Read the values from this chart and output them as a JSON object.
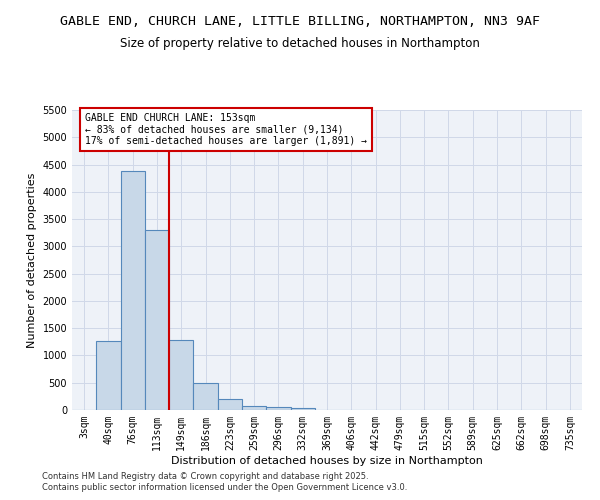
{
  "title": "GABLE END, CHURCH LANE, LITTLE BILLING, NORTHAMPTON, NN3 9AF",
  "subtitle": "Size of property relative to detached houses in Northampton",
  "xlabel": "Distribution of detached houses by size in Northampton",
  "ylabel": "Number of detached properties",
  "categories": [
    "3sqm",
    "40sqm",
    "76sqm",
    "113sqm",
    "149sqm",
    "186sqm",
    "223sqm",
    "259sqm",
    "296sqm",
    "332sqm",
    "369sqm",
    "406sqm",
    "442sqm",
    "479sqm",
    "515sqm",
    "552sqm",
    "589sqm",
    "625sqm",
    "662sqm",
    "698sqm",
    "735sqm"
  ],
  "bar_heights": [
    0,
    1270,
    4380,
    3300,
    1280,
    500,
    210,
    80,
    50,
    35,
    0,
    0,
    0,
    0,
    0,
    0,
    0,
    0,
    0,
    0,
    0
  ],
  "bar_color": "#c8d8e8",
  "bar_edge_color": "#5588bb",
  "bar_edge_width": 0.8,
  "ylim": [
    0,
    5500
  ],
  "yticks": [
    0,
    500,
    1000,
    1500,
    2000,
    2500,
    3000,
    3500,
    4000,
    4500,
    5000,
    5500
  ],
  "vline_x_index": 3.5,
  "vline_color": "#cc0000",
  "ann_title": "GABLE END CHURCH LANE: 153sqm",
  "ann_line2": "← 83% of detached houses are smaller (9,134)",
  "ann_line3": "17% of semi-detached houses are larger (1,891) →",
  "annotation_box_color": "#cc0000",
  "grid_color": "#d0d8e8",
  "bg_color": "#eef2f8",
  "footer1": "Contains HM Land Registry data © Crown copyright and database right 2025.",
  "footer2": "Contains public sector information licensed under the Open Government Licence v3.0.",
  "title_fontsize": 9.5,
  "subtitle_fontsize": 8.5,
  "axis_label_fontsize": 8,
  "tick_fontsize": 7,
  "ann_fontsize": 7,
  "footer_fontsize": 6
}
